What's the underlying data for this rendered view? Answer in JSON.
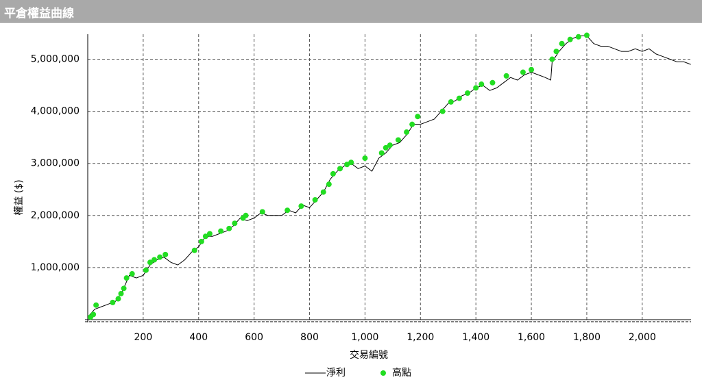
{
  "header": {
    "title": "平倉權益曲線"
  },
  "chart_data": {
    "type": "line",
    "x_label": "交易編號",
    "y_label": "權益 ($)",
    "xlim": [
      0,
      2176
    ],
    "ylim": [
      0,
      5480000
    ],
    "xticks": [
      200,
      400,
      600,
      800,
      {
        "value": 1000,
        "label": "1,000"
      },
      {
        "value": 1200,
        "label": "1,200"
      },
      {
        "value": 1400,
        "label": "1,400"
      },
      {
        "value": 1600,
        "label": "1,600"
      },
      {
        "value": 1800,
        "label": "1,800"
      },
      {
        "value": 2000,
        "label": "2,000"
      }
    ],
    "yticks": [
      {
        "value": 1000000,
        "label": "1,000,000"
      },
      {
        "value": 2000000,
        "label": "2,000,000"
      },
      {
        "value": 3000000,
        "label": "3,000,000"
      },
      {
        "value": 4000000,
        "label": "4,000,000"
      },
      {
        "value": 5000000,
        "label": "5,000,000"
      }
    ],
    "grid": true,
    "series": [
      {
        "name": "淨利",
        "type": "line",
        "color": "#000000",
        "x": [
          0,
          25,
          50,
          75,
          100,
          125,
          150,
          175,
          200,
          225,
          250,
          275,
          300,
          325,
          350,
          375,
          400,
          425,
          450,
          475,
          500,
          525,
          550,
          575,
          600,
          625,
          650,
          675,
          700,
          725,
          750,
          775,
          800,
          825,
          850,
          875,
          900,
          925,
          950,
          975,
          1000,
          1025,
          1050,
          1075,
          1100,
          1125,
          1150,
          1175,
          1200,
          1225,
          1250,
          1275,
          1300,
          1325,
          1350,
          1375,
          1400,
          1425,
          1450,
          1475,
          1500,
          1525,
          1550,
          1575,
          1600,
          1625,
          1650,
          1670,
          1675,
          1700,
          1725,
          1750,
          1775,
          1800,
          1825,
          1850,
          1875,
          1900,
          1925,
          1950,
          1975,
          2000,
          2025,
          2050,
          2075,
          2100,
          2125,
          2150,
          2175
        ],
        "values": [
          50000,
          200000,
          250000,
          300000,
          350000,
          550000,
          850000,
          800000,
          850000,
          1050000,
          1150000,
          1200000,
          1100000,
          1050000,
          1150000,
          1300000,
          1400000,
          1600000,
          1600000,
          1650000,
          1700000,
          1800000,
          1950000,
          1900000,
          1950000,
          2050000,
          2000000,
          2000000,
          2000000,
          2100000,
          2050000,
          2200000,
          2150000,
          2300000,
          2450000,
          2700000,
          2850000,
          2950000,
          3000000,
          2900000,
          2950000,
          2850000,
          3100000,
          3200000,
          3350000,
          3400000,
          3550000,
          3750000,
          3750000,
          3800000,
          3850000,
          4000000,
          4150000,
          4200000,
          4300000,
          4350000,
          4450000,
          4500000,
          4400000,
          4450000,
          4550000,
          4650000,
          4600000,
          4700000,
          4750000,
          4700000,
          4650000,
          4600000,
          4950000,
          5150000,
          5300000,
          5400000,
          5450000,
          5450000,
          5300000,
          5250000,
          5250000,
          5200000,
          5150000,
          5150000,
          5200000,
          5150000,
          5200000,
          5100000,
          5050000,
          5000000,
          4950000,
          4950000,
          4900000
        ]
      },
      {
        "name": "高點",
        "type": "scatter",
        "color": "#22dd22",
        "x": [
          10,
          20,
          30,
          90,
          110,
          120,
          130,
          140,
          160,
          210,
          225,
          240,
          260,
          280,
          385,
          410,
          425,
          440,
          480,
          510,
          530,
          560,
          570,
          630,
          720,
          770,
          820,
          850,
          870,
          885,
          910,
          935,
          950,
          1000,
          1060,
          1075,
          1090,
          1120,
          1150,
          1170,
          1190,
          1280,
          1310,
          1340,
          1370,
          1400,
          1420,
          1460,
          1510,
          1570,
          1600,
          1675,
          1690,
          1710,
          1740,
          1770,
          1800
        ],
        "values": [
          50000,
          100000,
          280000,
          330000,
          400000,
          500000,
          600000,
          800000,
          880000,
          950000,
          1100000,
          1150000,
          1200000,
          1250000,
          1330000,
          1500000,
          1600000,
          1650000,
          1700000,
          1750000,
          1850000,
          1950000,
          2000000,
          2070000,
          2100000,
          2180000,
          2300000,
          2450000,
          2600000,
          2800000,
          2900000,
          2980000,
          3020000,
          3100000,
          3200000,
          3300000,
          3350000,
          3450000,
          3600000,
          3750000,
          3900000,
          4000000,
          4180000,
          4250000,
          4350000,
          4450000,
          4520000,
          4550000,
          4680000,
          4750000,
          4800000,
          5000000,
          5150000,
          5300000,
          5380000,
          5430000,
          5460000
        ]
      }
    ]
  }
}
